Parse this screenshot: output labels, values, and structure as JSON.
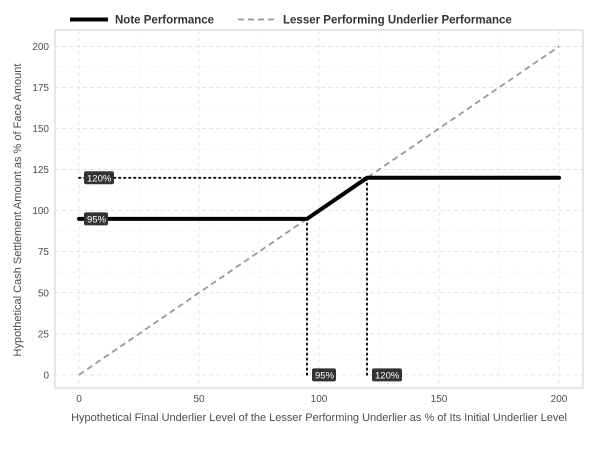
{
  "chart_data": {
    "type": "line",
    "xlabel": "Hypothetical Final Underlier Level of the Lesser Performing Underlier as % of Its Initial Underlier Level",
    "ylabel": "Hypothetical Cash Settlement Amount as % of Face Amount",
    "xlim": [
      -10,
      210
    ],
    "ylim": [
      -8,
      210
    ],
    "x_ticks": [
      0,
      50,
      100,
      150,
      200
    ],
    "y_ticks": [
      0,
      25,
      50,
      75,
      100,
      125,
      150,
      175,
      200
    ],
    "grid": true,
    "legend_position": "top",
    "series": [
      {
        "name": "Note Performance",
        "style": "solid-thick",
        "color": "#000000",
        "x": [
          0,
          95,
          120,
          200
        ],
        "y": [
          95,
          95,
          120,
          120
        ]
      },
      {
        "name": "Lesser Performing Underlier Performance",
        "style": "dashed",
        "color": "#999999",
        "x": [
          0,
          200
        ],
        "y": [
          0,
          200
        ]
      }
    ],
    "annotations": [
      {
        "label": "120%",
        "x": 0,
        "y": 120
      },
      {
        "label": "95%",
        "x": 0,
        "y": 95
      },
      {
        "label": "95%",
        "x": 95,
        "y": 0
      },
      {
        "label": "120%",
        "x": 120,
        "y": 0
      }
    ],
    "reference_lines": [
      {
        "from": [
          0,
          120
        ],
        "to": [
          120,
          120
        ]
      },
      {
        "from": [
          95,
          0
        ],
        "to": [
          95,
          95
        ]
      },
      {
        "from": [
          120,
          0
        ],
        "to": [
          120,
          120
        ]
      }
    ]
  }
}
